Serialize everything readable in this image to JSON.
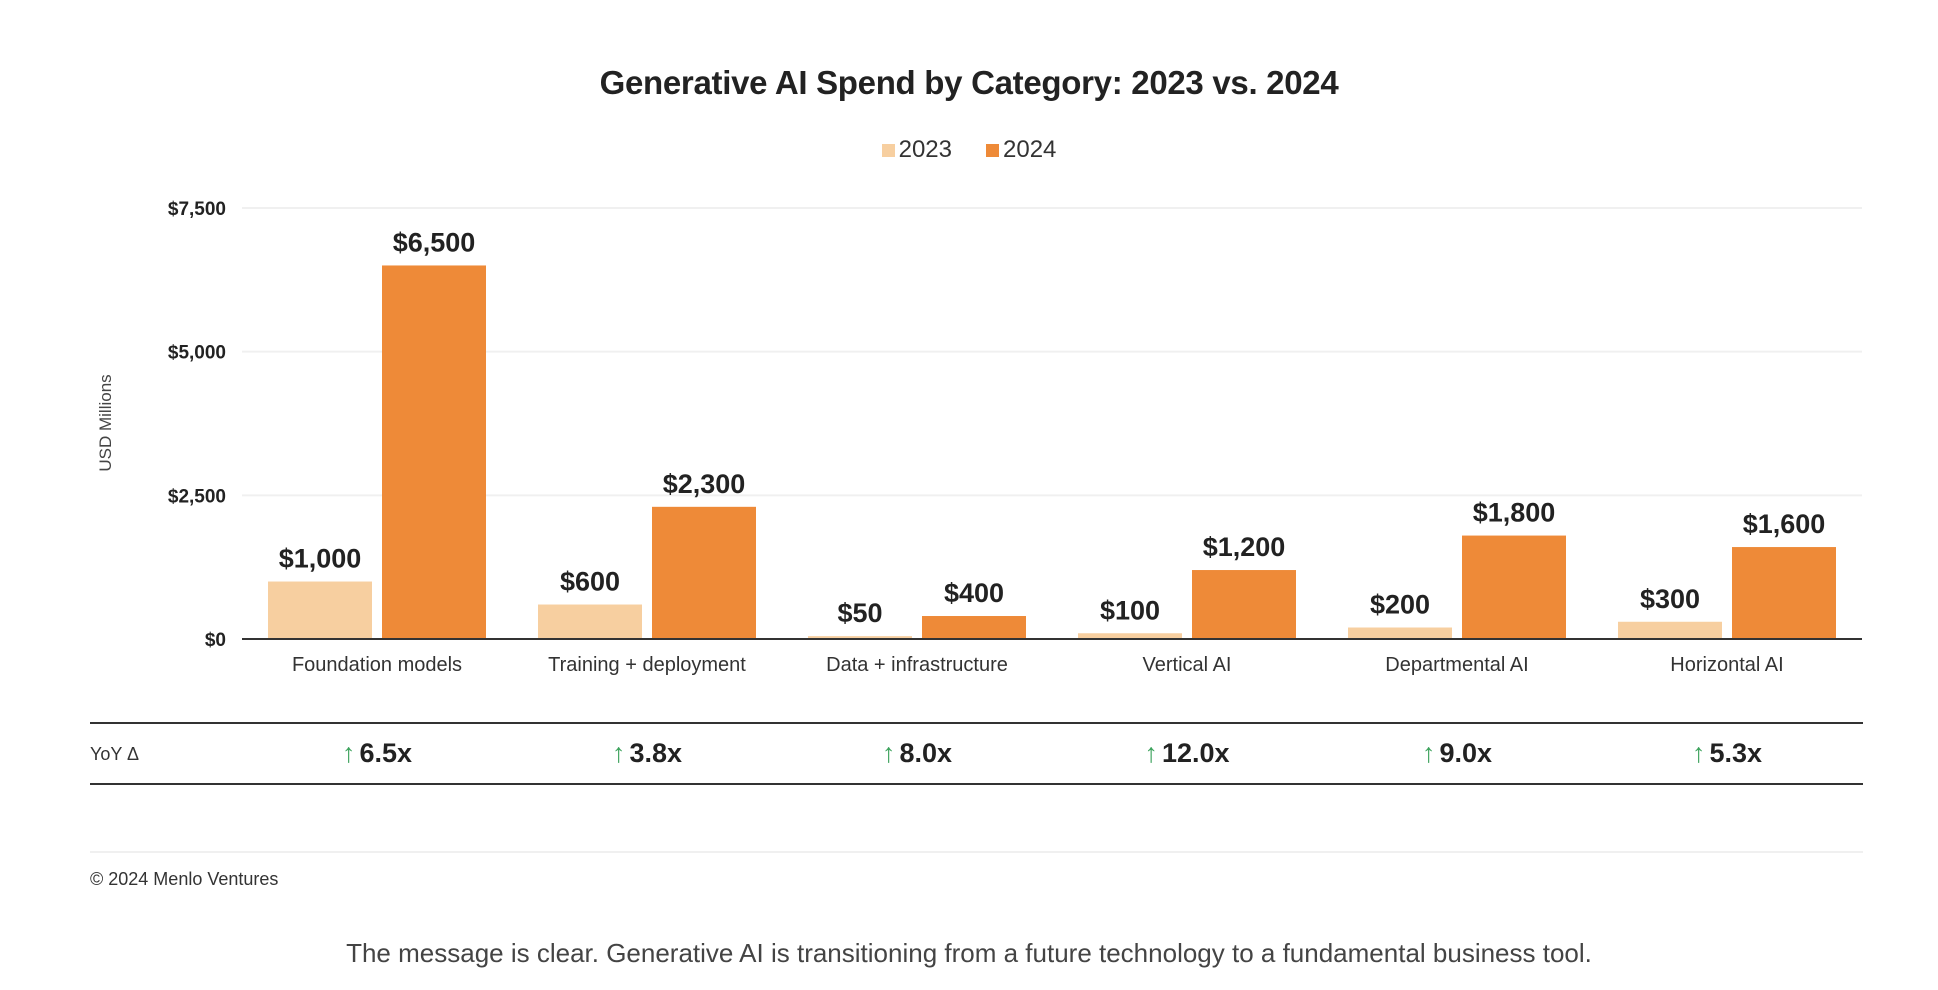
{
  "chart_data": {
    "type": "bar",
    "title": "Generative AI Spend by Category: 2023 vs. 2024",
    "xlabel": "",
    "ylabel": "USD Millions",
    "ylim": [
      0,
      7500
    ],
    "yticks": [
      0,
      2500,
      5000,
      7500
    ],
    "ytick_labels": [
      "$0",
      "$2,500",
      "$5,000",
      "$7,500"
    ],
    "grid": true,
    "legend_position": "top-center",
    "categories": [
      "Foundation models",
      "Training + deployment",
      "Data + infrastructure",
      "Vertical AI",
      "Departmental AI",
      "Horizontal AI"
    ],
    "series": [
      {
        "name": "2023",
        "color": "#F7CFA0",
        "values": [
          1000,
          600,
          50,
          100,
          200,
          300
        ],
        "labels": [
          "$1,000",
          "$600",
          "$50",
          "$100",
          "$200",
          "$300"
        ]
      },
      {
        "name": "2024",
        "color": "#EE8A38",
        "values": [
          6500,
          2300,
          400,
          1200,
          1800,
          1600
        ],
        "labels": [
          "$6,500",
          "$2,300",
          "$400",
          "$1,200",
          "$1,800",
          "$1,600"
        ]
      }
    ]
  },
  "yoy": {
    "label": "YoY Δ",
    "arrow": "↑",
    "arrow_color": "#3DA35D",
    "values": [
      "6.5x",
      "3.8x",
      "8.0x",
      "12.0x",
      "9.0x",
      "5.3x"
    ]
  },
  "footer": {
    "copyright": "© 2024 Menlo Ventures",
    "caption": "The message is clear. Generative AI is transitioning from a future technology to a fundamental business tool."
  }
}
